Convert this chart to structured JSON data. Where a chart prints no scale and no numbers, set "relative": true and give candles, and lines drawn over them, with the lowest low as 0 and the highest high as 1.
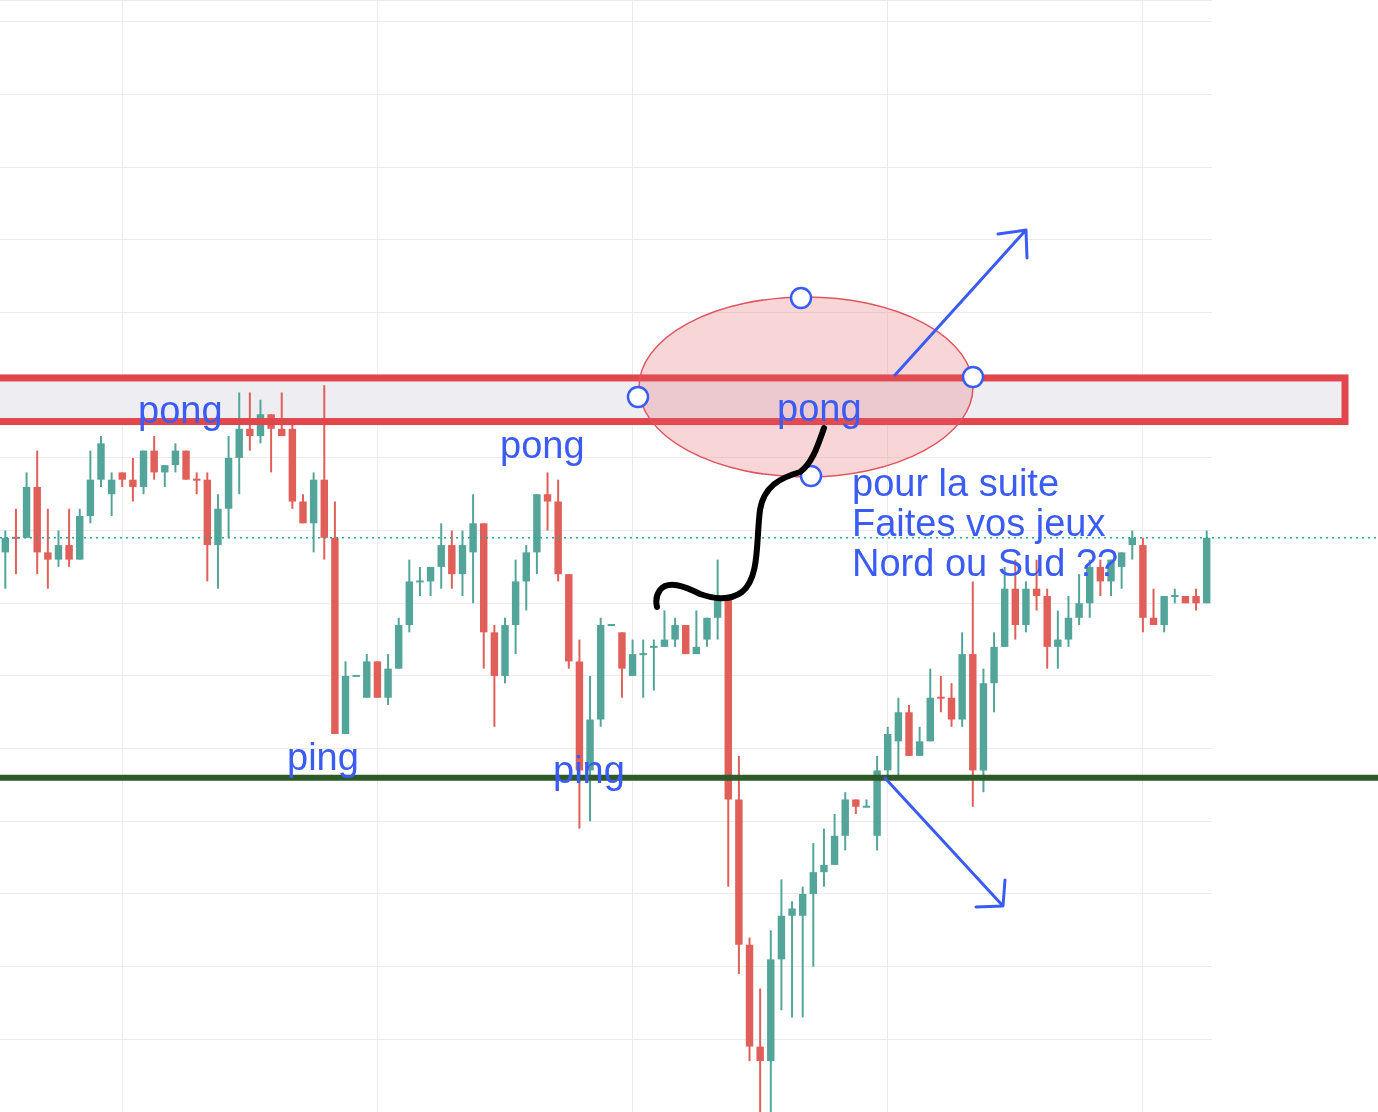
{
  "chart_data": {
    "type": "candlestick",
    "relative": true,
    "tick_labels": false,
    "grid": true,
    "categories": [
      null,
      null,
      null,
      null,
      null,
      null,
      null,
      null,
      null,
      null,
      null,
      null,
      null,
      null,
      null,
      null,
      null,
      null,
      null,
      null,
      null,
      null,
      null,
      null,
      null,
      null,
      null,
      null,
      null,
      null,
      null,
      null,
      null,
      null,
      null,
      null,
      null,
      null,
      null,
      null,
      null,
      null,
      null,
      null,
      null,
      null,
      null,
      null,
      null,
      null,
      null,
      null,
      null,
      null,
      null,
      null,
      null,
      null,
      null,
      null,
      null,
      null,
      null,
      null,
      null,
      null,
      null,
      null,
      null,
      null,
      null,
      null,
      null,
      null,
      null,
      null,
      null,
      null,
      null,
      null,
      null,
      null,
      null,
      null,
      null,
      null,
      null,
      null,
      null,
      null,
      null,
      null,
      null,
      null,
      null,
      null,
      null,
      null,
      null,
      null,
      null,
      null,
      null,
      null,
      null,
      null,
      null,
      null,
      null,
      null,
      null,
      null,
      null,
      null
    ],
    "ohlc": [
      [
        0.77,
        0.8,
        0.72,
        0.79
      ],
      [
        0.79,
        0.83,
        0.74,
        0.79
      ],
      [
        0.79,
        0.88,
        0.79,
        0.86
      ],
      [
        0.86,
        0.91,
        0.74,
        0.77
      ],
      [
        0.77,
        0.83,
        0.72,
        0.76
      ],
      [
        0.76,
        0.8,
        0.75,
        0.78
      ],
      [
        0.78,
        0.83,
        0.75,
        0.76
      ],
      [
        0.76,
        0.83,
        0.76,
        0.82
      ],
      [
        0.82,
        0.91,
        0.81,
        0.87
      ],
      [
        0.87,
        0.93,
        0.86,
        0.92
      ],
      [
        0.85,
        0.88,
        0.82,
        0.87
      ],
      [
        0.88,
        0.88,
        0.86,
        0.87
      ],
      [
        0.87,
        0.9,
        0.84,
        0.86
      ],
      [
        0.86,
        0.91,
        0.85,
        0.91
      ],
      [
        0.91,
        0.93,
        0.87,
        0.88
      ],
      [
        0.88,
        0.89,
        0.86,
        0.89
      ],
      [
        0.89,
        0.92,
        0.88,
        0.91
      ],
      [
        0.91,
        0.91,
        0.87,
        0.87
      ],
      [
        0.87,
        0.88,
        0.85,
        0.87
      ],
      [
        0.87,
        0.88,
        0.73,
        0.78
      ],
      [
        0.78,
        0.85,
        0.72,
        0.83
      ],
      [
        0.83,
        0.93,
        0.79,
        0.9
      ],
      [
        0.9,
        0.99,
        0.85,
        0.94
      ],
      [
        0.94,
        0.99,
        0.91,
        0.93
      ],
      [
        0.93,
        0.98,
        0.92,
        0.96
      ],
      [
        0.96,
        0.96,
        0.88,
        0.94
      ],
      [
        0.94,
        0.99,
        0.93,
        0.93
      ],
      [
        0.94,
        0.95,
        0.83,
        0.84
      ],
      [
        0.84,
        0.85,
        0.81,
        0.81
      ],
      [
        0.81,
        0.88,
        0.77,
        0.87
      ],
      [
        0.87,
        1,
        0.76,
        0.79
      ],
      [
        0.79,
        0.84,
        0.52,
        0.52
      ],
      [
        0.52,
        0.62,
        0.52,
        0.6
      ],
      [
        0.6,
        0.6,
        0.6,
        0.6
      ],
      [
        0.57,
        0.63,
        0.57,
        0.62
      ],
      [
        0.62,
        0.62,
        0.57,
        0.57
      ],
      [
        0.57,
        0.63,
        0.56,
        0.61
      ],
      [
        0.61,
        0.68,
        0.61,
        0.67
      ],
      [
        0.67,
        0.76,
        0.66,
        0.73
      ],
      [
        0.73,
        0.75,
        0.71,
        0.73
      ],
      [
        0.73,
        0.75,
        0.71,
        0.75
      ],
      [
        0.75,
        0.81,
        0.72,
        0.78
      ],
      [
        0.78,
        0.8,
        0.72,
        0.74
      ],
      [
        0.74,
        0.8,
        0.71,
        0.78
      ],
      [
        0.77,
        0.85,
        0.7,
        0.81
      ],
      [
        0.81,
        0.81,
        0.61,
        0.66
      ],
      [
        0.66,
        0.67,
        0.53,
        0.6
      ],
      [
        0.6,
        0.68,
        0.59,
        0.67
      ],
      [
        0.67,
        0.76,
        0.63,
        0.73
      ],
      [
        0.73,
        0.78,
        0.69,
        0.77
      ],
      [
        0.77,
        0.85,
        0.74,
        0.85
      ],
      [
        0.85,
        0.88,
        0.8,
        0.84
      ],
      [
        0.84,
        0.87,
        0.73,
        0.74
      ],
      [
        0.74,
        0.74,
        0.61,
        0.62
      ],
      [
        0.62,
        0.65,
        0.39,
        0.47
      ],
      [
        0.47,
        0.6,
        0.4,
        0.54
      ],
      [
        0.54,
        0.68,
        0.53,
        0.67
      ],
      [
        0.67,
        0.67,
        0.67,
        0.67
      ],
      [
        0.66,
        0.66,
        0.57,
        0.61
      ],
      [
        0.6,
        0.65,
        0.6,
        0.63
      ],
      [
        0.63,
        0.65,
        0.57,
        0.63
      ],
      [
        0.64,
        0.65,
        0.58,
        0.64
      ],
      [
        0.64,
        0.69,
        0.64,
        0.65
      ],
      [
        0.65,
        0.68,
        0.64,
        0.67
      ],
      [
        0.67,
        0.67,
        0.63,
        0.63
      ],
      [
        0.63,
        0.69,
        0.63,
        0.64
      ],
      [
        0.65,
        0.68,
        0.64,
        0.68
      ],
      [
        0.68,
        0.76,
        0.65,
        0.71
      ],
      [
        0.71,
        0.71,
        0.31,
        0.43
      ],
      [
        0.43,
        0.49,
        0.19,
        0.23
      ],
      [
        0.23,
        0.24,
        0.07,
        0.09
      ],
      [
        0.09,
        0.17,
        0,
        0.07
      ],
      [
        0.07,
        0.25,
        0,
        0.21
      ],
      [
        0.21,
        0.32,
        0.14,
        0.27
      ],
      [
        0.27,
        0.29,
        0.13,
        0.28
      ],
      [
        0.27,
        0.31,
        0.13,
        0.3
      ],
      [
        0.3,
        0.37,
        0.2,
        0.33
      ],
      [
        0.33,
        0.39,
        0.31,
        0.34
      ],
      [
        0.34,
        0.41,
        0.34,
        0.38
      ],
      [
        0.38,
        0.44,
        0.36,
        0.43
      ],
      [
        0.43,
        0.43,
        0.41,
        0.42
      ],
      [
        0.42,
        0.43,
        0.42,
        0.42
      ],
      [
        0.38,
        0.49,
        0.36,
        0.47
      ],
      [
        0.47,
        0.53,
        0.46,
        0.52
      ],
      [
        0.51,
        0.57,
        0.46,
        0.55
      ],
      [
        0.55,
        0.56,
        0.49,
        0.49
      ],
      [
        0.49,
        0.53,
        0.49,
        0.51
      ],
      [
        0.51,
        0.61,
        0.51,
        0.57
      ],
      [
        0.57,
        0.6,
        0.55,
        0.57
      ],
      [
        0.57,
        0.59,
        0.53,
        0.54
      ],
      [
        0.54,
        0.66,
        0.53,
        0.63
      ],
      [
        0.63,
        0.73,
        0.42,
        0.47
      ],
      [
        0.47,
        0.61,
        0.44,
        0.59
      ],
      [
        0.59,
        0.66,
        0.55,
        0.64
      ],
      [
        0.64,
        0.75,
        0.64,
        0.72
      ],
      [
        0.72,
        0.76,
        0.65,
        0.67
      ],
      [
        0.67,
        0.73,
        0.66,
        0.72
      ],
      [
        0.72,
        0.76,
        0.69,
        0.71
      ],
      [
        0.71,
        0.72,
        0.61,
        0.64
      ],
      [
        0.64,
        0.69,
        0.61,
        0.65
      ],
      [
        0.65,
        0.71,
        0.64,
        0.68
      ],
      [
        0.68,
        0.74,
        0.67,
        0.7
      ],
      [
        0.7,
        0.76,
        0.68,
        0.75
      ],
      [
        0.75,
        0.76,
        0.71,
        0.73
      ],
      [
        0.73,
        0.76,
        0.71,
        0.76
      ],
      [
        0.75,
        0.77,
        0.72,
        0.77
      ],
      [
        0.78,
        0.8,
        0.76,
        0.79
      ],
      [
        0.78,
        0.79,
        0.66,
        0.68
      ],
      [
        0.68,
        0.72,
        0.67,
        0.67
      ],
      [
        0.67,
        0.71,
        0.66,
        0.71
      ],
      [
        0.71,
        0.72,
        0.7,
        0.71
      ],
      [
        0.71,
        0.71,
        0.7,
        0.7
      ],
      [
        0.71,
        0.72,
        0.69,
        0.7
      ],
      [
        0.7,
        0.8,
        0.7,
        0.79
      ]
    ],
    "colors": [
      "#53a59a",
      "#e05f58",
      "#53a59a",
      "#e05f58",
      "#e05f58",
      "#53a59a",
      "#e05f58",
      "#53a59a",
      "#53a59a",
      "#53a59a",
      "#53a59a",
      "#e05f58",
      "#e05f58",
      "#53a59a",
      "#e05f58",
      "#53a59a",
      "#53a59a",
      "#e05f58",
      "#e05f58",
      "#e05f58",
      "#53a59a",
      "#53a59a",
      "#53a59a",
      "#e05f58",
      "#53a59a",
      "#e05f58",
      "#e05f58",
      "#e05f58",
      "#e05f58",
      "#53a59a",
      "#e05f58",
      "#e05f58",
      "#53a59a",
      "#53a59a",
      "#53a59a",
      "#e05f58",
      "#53a59a",
      "#53a59a",
      "#53a59a",
      "#53a59a",
      "#53a59a",
      "#53a59a",
      "#e05f58",
      "#53a59a",
      "#53a59a",
      "#e05f58",
      "#e05f58",
      "#53a59a",
      "#53a59a",
      "#53a59a",
      "#53a59a",
      "#e05f58",
      "#e05f58",
      "#e05f58",
      "#e05f58",
      "#53a59a",
      "#53a59a",
      "#53a59a",
      "#e05f58",
      "#53a59a",
      "#53a59a",
      "#53a59a",
      "#53a59a",
      "#53a59a",
      "#e05f58",
      "#53a59a",
      "#53a59a",
      "#53a59a",
      "#e05f58",
      "#e05f58",
      "#e05f58",
      "#e05f58",
      "#53a59a",
      "#53a59a",
      "#53a59a",
      "#53a59a",
      "#53a59a",
      "#53a59a",
      "#53a59a",
      "#53a59a",
      "#e05f58",
      "#53a59a",
      "#53a59a",
      "#53a59a",
      "#53a59a",
      "#e05f58",
      "#53a59a",
      "#53a59a",
      "#e05f58",
      "#e05f58",
      "#53a59a",
      "#e05f58",
      "#53a59a",
      "#53a59a",
      "#53a59a",
      "#e05f58",
      "#53a59a",
      "#e05f58",
      "#e05f58",
      "#53a59a",
      "#53a59a",
      "#53a59a",
      "#53a59a",
      "#e05f58",
      "#53a59a",
      "#53a59a",
      "#53a59a",
      "#e05f58",
      "#e05f58",
      "#53a59a",
      "#53a59a",
      "#e05f58",
      "#e05f58",
      "#53a59a"
    ],
    "bands": [
      {
        "axis": "y",
        "from": 0.95,
        "to": 1.01,
        "color": "#eeeef2"
      }
    ],
    "ref_lines": [
      {
        "axis": "y",
        "value": 0.79,
        "color": "#26a69a",
        "line_style": "dotted"
      },
      {
        "axis": "y",
        "value": 0.46,
        "color": "#2d5a27",
        "line_style": "solid"
      }
    ],
    "annotations": [
      "pong",
      "pong",
      "pong",
      "ping",
      "ping",
      "pour la suite\nFaites vos jeux\nNord ou Sud ??"
    ]
  }
}
